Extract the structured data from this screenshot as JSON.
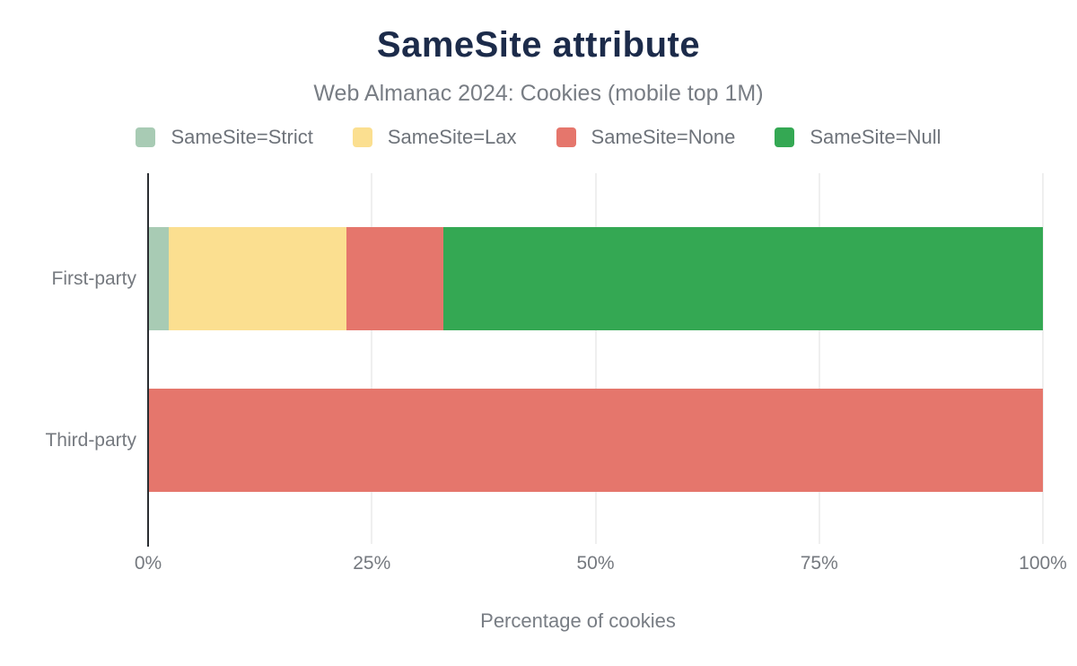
{
  "header": {
    "title": "SameSite attribute",
    "subtitle": "Web Almanac 2024: Cookies (mobile top 1M)"
  },
  "colors": {
    "title_text": "#1c2b4a",
    "subtitle_text": "#787d84",
    "legend_text": "#6e737a",
    "axis_text": "#75797f",
    "axis_line": "#2a2d31",
    "gridline": "#efefef",
    "background": "#ffffff"
  },
  "chart_data": {
    "type": "bar",
    "orientation": "horizontal",
    "stacked": true,
    "title": "SameSite attribute",
    "subtitle": "Web Almanac 2024: Cookies (mobile top 1M)",
    "xlabel": "Percentage of cookies",
    "ylabel": "",
    "xlim": [
      0,
      100
    ],
    "grid": "vertical",
    "legend_position": "top",
    "categories": [
      "First-party",
      "Third-party"
    ],
    "series": [
      {
        "name": "SameSite=Strict",
        "color": "#a8cbb4",
        "values": [
          2.2,
          0
        ]
      },
      {
        "name": "SameSite=Lax",
        "color": "#fbdf90",
        "values": [
          19.9,
          0
        ]
      },
      {
        "name": "SameSite=None",
        "color": "#e5766c",
        "values": [
          10.8,
          100
        ]
      },
      {
        "name": "SameSite=Null",
        "color": "#34a853",
        "values": [
          67.1,
          0
        ]
      }
    ],
    "x_ticks": [
      {
        "value": 0,
        "label": "0%"
      },
      {
        "value": 25,
        "label": "25%"
      },
      {
        "value": 50,
        "label": "50%"
      },
      {
        "value": 75,
        "label": "75%"
      },
      {
        "value": 100,
        "label": "100%"
      }
    ]
  }
}
